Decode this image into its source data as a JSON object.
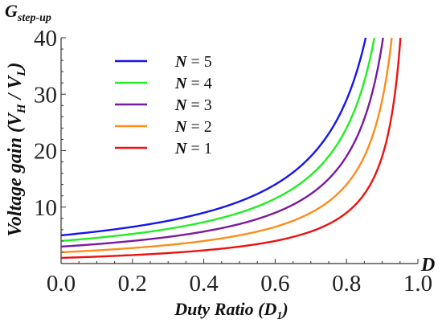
{
  "chart_data": {
    "type": "line",
    "title": "G",
    "title_subscript": "step-up",
    "x_axis_letter": "D",
    "xlabel": "Duty Ratio (D",
    "xlabel_subscript": "1",
    "xlabel_suffix": ")",
    "ylabel": "Voltage gain (V",
    "ylabel_sub_h": "H",
    "ylabel_mid": " / V",
    "ylabel_sub_l": "L",
    "ylabel_suffix": ")",
    "xlim": [
      0.0,
      1.0
    ],
    "ylim": [
      0,
      40
    ],
    "xticks": [
      "0.0",
      "0.2",
      "0.4",
      "0.6",
      "0.8",
      "1.0"
    ],
    "yticks": [
      "10",
      "20",
      "30",
      "40"
    ],
    "grid": false,
    "legend_position": "top-left",
    "formula": "G = (N + D) / (1 - D)",
    "series": [
      {
        "name": "N = 5",
        "N": 5,
        "color": "#1515ee"
      },
      {
        "name": "N = 4",
        "N": 4,
        "color": "#22ee22"
      },
      {
        "name": "N = 3",
        "N": 3,
        "color": "#7a1aa0"
      },
      {
        "name": "N = 2",
        "N": 2,
        "color": "#ff8c1a"
      },
      {
        "name": "N = 1",
        "N": 1,
        "color": "#ee1111"
      }
    ]
  }
}
